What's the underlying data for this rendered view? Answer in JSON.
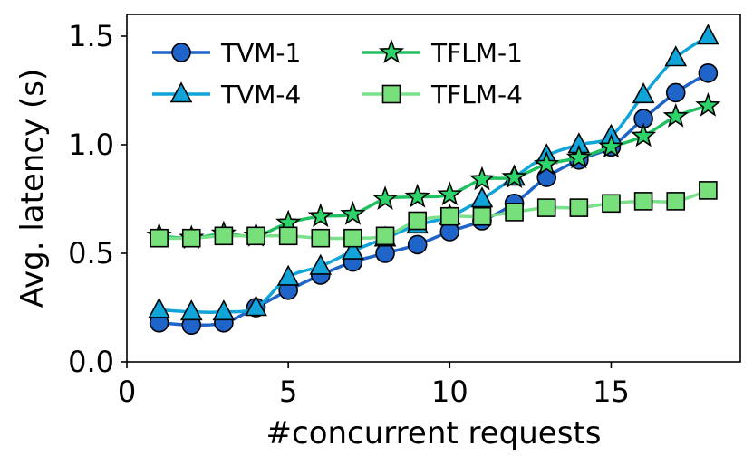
{
  "chart_data": {
    "type": "line",
    "title": "",
    "xlabel": "#concurrent requests",
    "ylabel": "Avg. latency (s)",
    "xlim": [
      0,
      19
    ],
    "ylim": [
      0.0,
      1.6
    ],
    "x_ticks": [
      0,
      5,
      10,
      15
    ],
    "x_tick_labels": [
      "0",
      "5",
      "10",
      "15"
    ],
    "y_ticks": [
      0.0,
      0.5,
      1.0,
      1.5
    ],
    "y_tick_labels": [
      "0.0",
      "0.5",
      "1.0",
      "1.5"
    ],
    "grid": false,
    "legend_position": "top-left",
    "x": [
      1,
      2,
      3,
      4,
      5,
      6,
      7,
      8,
      9,
      10,
      11,
      12,
      13,
      14,
      15,
      16,
      17,
      18
    ],
    "series": [
      {
        "name": "TVM-1",
        "marker": "circle",
        "line_color": "#1f64c8",
        "marker_color": "#1f64c8",
        "values": [
          0.18,
          0.17,
          0.18,
          0.25,
          0.33,
          0.4,
          0.46,
          0.5,
          0.54,
          0.6,
          0.65,
          0.73,
          0.85,
          0.93,
          0.99,
          1.12,
          1.24,
          1.33
        ]
      },
      {
        "name": "TVM-4",
        "marker": "triangle",
        "line_color": "#10a4d8",
        "marker_color": "#10a4d8",
        "values": [
          0.24,
          0.23,
          0.23,
          0.25,
          0.39,
          0.44,
          0.51,
          0.57,
          0.63,
          0.67,
          0.75,
          0.85,
          0.95,
          1.0,
          1.04,
          1.23,
          1.4,
          1.5
        ]
      },
      {
        "name": "TFLM-1",
        "marker": "star",
        "line_color": "#20c060",
        "marker_color": "#2cd46a",
        "values": [
          0.58,
          0.57,
          0.59,
          0.58,
          0.64,
          0.67,
          0.68,
          0.75,
          0.76,
          0.77,
          0.84,
          0.85,
          0.91,
          0.94,
          0.99,
          1.04,
          1.13,
          1.18
        ]
      },
      {
        "name": "TFLM-4",
        "marker": "square",
        "line_color": "#7ae08a",
        "marker_color": "#78e07a",
        "values": [
          0.57,
          0.57,
          0.58,
          0.58,
          0.58,
          0.57,
          0.57,
          0.58,
          0.65,
          0.67,
          0.67,
          0.69,
          0.71,
          0.71,
          0.73,
          0.74,
          0.74,
          0.79
        ]
      }
    ]
  }
}
